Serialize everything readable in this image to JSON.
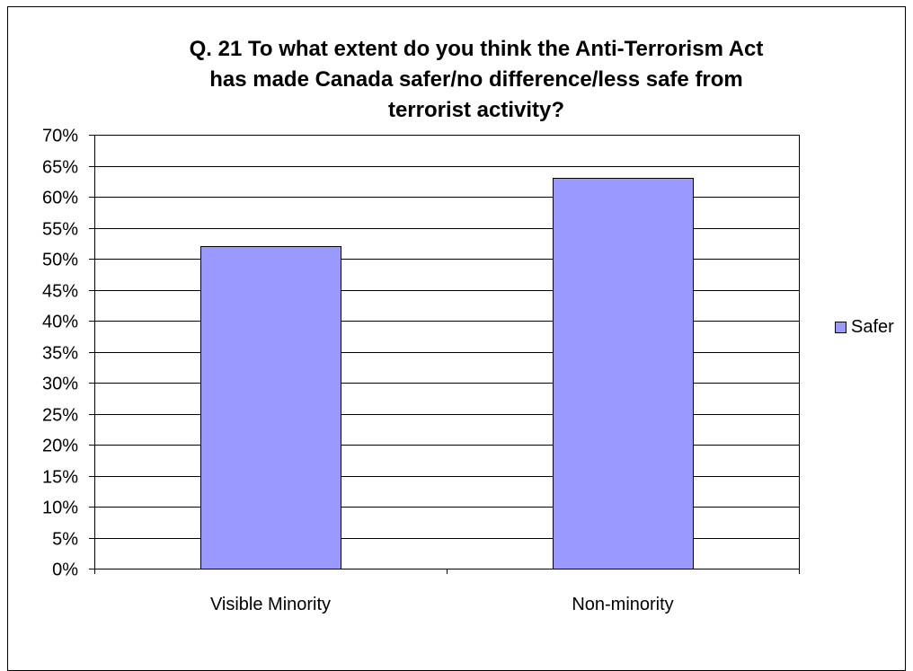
{
  "chart_data": {
    "type": "bar",
    "title_lines": [
      "Q. 21 To what extent do you think the Anti-Terrorism Act",
      "has made Canada safer/no difference/less safe from",
      "terrorist activity?"
    ],
    "categories": [
      "Visible Minority",
      "Non-minority"
    ],
    "series": [
      {
        "name": "Safer",
        "values": [
          52,
          63
        ],
        "color": "#9999ff"
      }
    ],
    "ylim": [
      0,
      70
    ],
    "ytick_step": 5,
    "ytick_format": "%",
    "grid": true,
    "legend": "right"
  }
}
